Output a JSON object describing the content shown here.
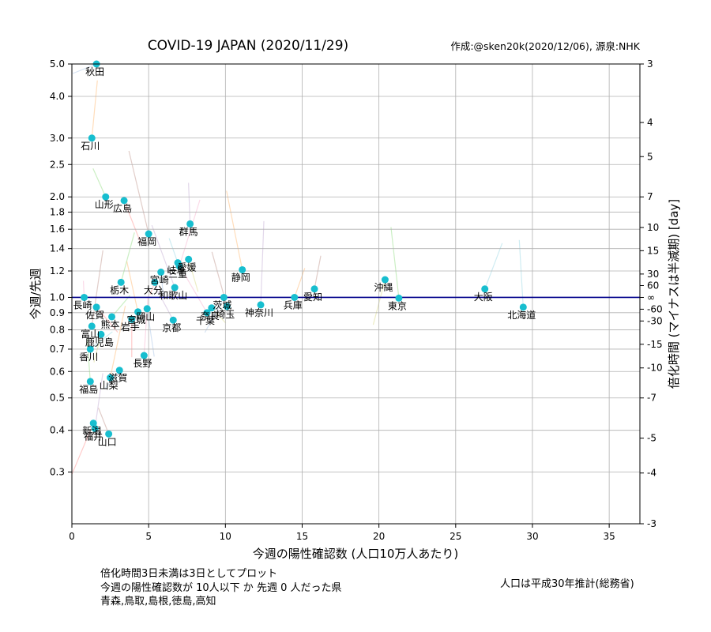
{
  "chart_data": {
    "type": "scatter",
    "title": "COVID-19 JAPAN (2020/11/29)",
    "credit": "作成:@sken20k(2020/12/06), 源泉:NHK",
    "xlabel": "今週の陽性確認数 (人口10万人あたり)",
    "ylabel": "今週/先週",
    "y2label": "倍化時間 (マイナスは半減期) [day]",
    "xlim": [
      0,
      37
    ],
    "ylim": [
      0.21,
      5.0
    ],
    "yscale": "log",
    "grid": true,
    "reference_line": 1.0,
    "xticks": [
      0,
      5,
      10,
      15,
      20,
      25,
      30,
      35
    ],
    "yticks": [
      {
        "value": 0.3,
        "label": "0.3"
      },
      {
        "value": 0.4,
        "label": "0.4"
      },
      {
        "value": 0.5,
        "label": "0.5"
      },
      {
        "value": 0.6,
        "label": "0.6"
      },
      {
        "value": 0.7,
        "label": "0.7"
      },
      {
        "value": 0.8,
        "label": "0.8"
      },
      {
        "value": 0.9,
        "label": "0.9"
      },
      {
        "value": 1.0,
        "label": "1.0"
      },
      {
        "value": 1.2,
        "label": "1.2"
      },
      {
        "value": 1.4,
        "label": "1.4"
      },
      {
        "value": 1.6,
        "label": "1.6"
      },
      {
        "value": 1.8,
        "label": "1.8"
      },
      {
        "value": 2.0,
        "label": "2.0"
      },
      {
        "value": 2.5,
        "label": "2.5"
      },
      {
        "value": 3.0,
        "label": "3.0"
      },
      {
        "value": 4.0,
        "label": "4.0"
      },
      {
        "value": 5.0,
        "label": "5.0"
      }
    ],
    "y2ticks": [
      {
        "label": "3",
        "ratio": 5.0
      },
      {
        "label": "4",
        "ratio": 3.34
      },
      {
        "label": "5",
        "ratio": 2.64
      },
      {
        "label": "7",
        "ratio": 2.0
      },
      {
        "label": "10",
        "ratio": 1.62
      },
      {
        "label": "15",
        "ratio": 1.38
      },
      {
        "label": "30",
        "ratio": 1.175
      },
      {
        "label": "60",
        "ratio": 1.085
      },
      {
        "label": "∞",
        "ratio": 1.0
      },
      {
        "label": "-60",
        "ratio": 0.922
      },
      {
        "label": "-30",
        "ratio": 0.85
      },
      {
        "label": "-15",
        "ratio": 0.724
      },
      {
        "label": "-10",
        "ratio": 0.615
      },
      {
        "label": "-7",
        "ratio": 0.5
      },
      {
        "label": "-5",
        "ratio": 0.379
      },
      {
        "label": "-4",
        "ratio": 0.298
      },
      {
        "label": "-3",
        "ratio": 0.199
      }
    ],
    "point_color": "#17becf",
    "line_color": "#00008b",
    "points": [
      {
        "label": "秋田",
        "x": 1.6,
        "y": 5.0
      },
      {
        "label": "石川",
        "x": 1.3,
        "y": 3.0
      },
      {
        "label": "山形",
        "x": 2.2,
        "y": 2.0
      },
      {
        "label": "広島",
        "x": 3.4,
        "y": 1.95
      },
      {
        "label": "群馬",
        "x": 7.7,
        "y": 1.66
      },
      {
        "label": "福岡",
        "x": 5.0,
        "y": 1.55
      },
      {
        "label": "愛媛",
        "x": 7.6,
        "y": 1.3
      },
      {
        "label": "岐阜",
        "x": 6.9,
        "y": 1.27
      },
      {
        "label": "三重",
        "x": 7.0,
        "y": 1.24
      },
      {
        "label": "宮崎",
        "x": 5.8,
        "y": 1.19
      },
      {
        "label": "静岡",
        "x": 11.1,
        "y": 1.21
      },
      {
        "label": "栃木",
        "x": 3.2,
        "y": 1.11
      },
      {
        "label": "大分",
        "x": 5.4,
        "y": 1.11
      },
      {
        "label": "和歌山",
        "x": 6.7,
        "y": 1.07
      },
      {
        "label": "愛知",
        "x": 15.8,
        "y": 1.06
      },
      {
        "label": "沖縄",
        "x": 20.4,
        "y": 1.13
      },
      {
        "label": "大阪",
        "x": 26.9,
        "y": 1.06
      },
      {
        "label": "長崎",
        "x": 0.8,
        "y": 1.0
      },
      {
        "label": "茨城",
        "x": 9.9,
        "y": 1.0
      },
      {
        "label": "兵庫",
        "x": 14.5,
        "y": 1.0
      },
      {
        "label": "東京",
        "x": 21.3,
        "y": 0.995
      },
      {
        "label": "佐賀",
        "x": 1.6,
        "y": 0.935
      },
      {
        "label": "神奈川",
        "x": 12.3,
        "y": 0.95
      },
      {
        "label": "埼玉",
        "x": 10.1,
        "y": 0.94
      },
      {
        "label": "奈良",
        "x": 9.1,
        "y": 0.93
      },
      {
        "label": "北海道",
        "x": 29.4,
        "y": 0.935
      },
      {
        "label": "千葉",
        "x": 8.8,
        "y": 0.9
      },
      {
        "label": "岡山",
        "x": 4.9,
        "y": 0.925
      },
      {
        "label": "宮城",
        "x": 4.3,
        "y": 0.905
      },
      {
        "label": "熊本",
        "x": 2.6,
        "y": 0.875
      },
      {
        "label": "岩手",
        "x": 3.9,
        "y": 0.86
      },
      {
        "label": "京都",
        "x": 6.6,
        "y": 0.855
      },
      {
        "label": "富山",
        "x": 1.3,
        "y": 0.82
      },
      {
        "label": "鹿児島",
        "x": 1.9,
        "y": 0.775
      },
      {
        "label": "香川",
        "x": 1.2,
        "y": 0.7
      },
      {
        "label": "長野",
        "x": 4.7,
        "y": 0.67
      },
      {
        "label": "滋賀",
        "x": 3.1,
        "y": 0.605
      },
      {
        "label": "山梨",
        "x": 2.5,
        "y": 0.575
      },
      {
        "label": "福島",
        "x": 1.2,
        "y": 0.56
      },
      {
        "label": "新潟",
        "x": 1.4,
        "y": 0.42
      },
      {
        "label": "福井",
        "x": 1.5,
        "y": 0.405
      },
      {
        "label": "山口",
        "x": 2.4,
        "y": 0.39
      }
    ]
  },
  "notes": {
    "line1": "倍化時間3日未満は3日としてプロット",
    "line2": "今週の陽性確認数が 10人以下 か 先週 0 人だった県",
    "line3": "青森,鳥取,島根,徳島,高知",
    "population": "人口は平成30年推計(総務省)"
  }
}
